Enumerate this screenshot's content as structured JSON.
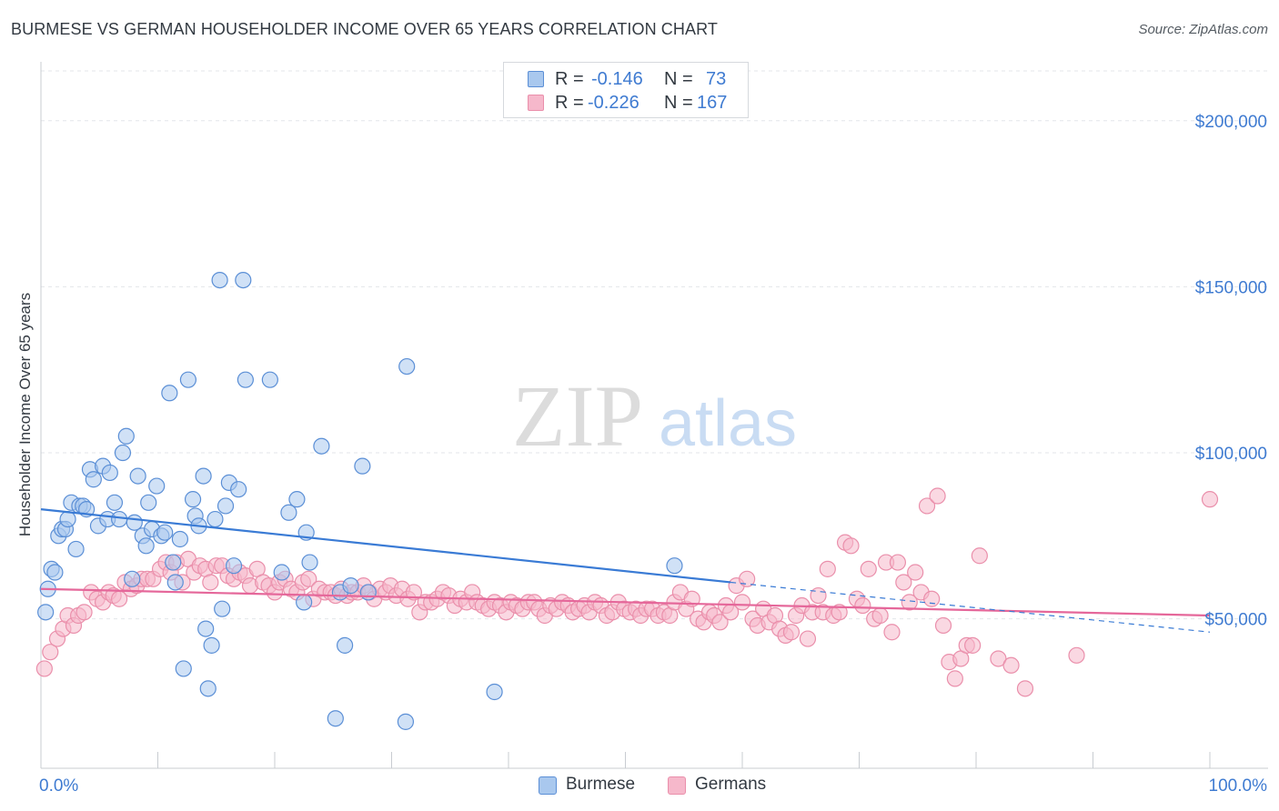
{
  "title": "BURMESE VS GERMAN HOUSEHOLDER INCOME OVER 65 YEARS CORRELATION CHART",
  "source": "Source: ZipAtlas.com",
  "watermark": {
    "zip": "ZIP",
    "atlas": "atlas"
  },
  "legend": {
    "rows": [
      {
        "r_label": "R =",
        "r_value": "-0.146",
        "n_label": "N =",
        "n_value": "73"
      },
      {
        "r_label": "R =",
        "r_value": "-0.226",
        "n_label": "N =",
        "n_value": "167"
      }
    ]
  },
  "colors": {
    "burmese_fill": "#a9c8ee",
    "burmese_stroke": "#5b8fd6",
    "burmese_line": "#3a7bd5",
    "german_fill": "#f6b8cb",
    "german_stroke": "#ea8fab",
    "german_line": "#e5679a",
    "axis_text": "#3f7bd1",
    "grid": "#e3e6ea"
  },
  "chart_data": {
    "type": "scatter",
    "title": "BURMESE VS GERMAN HOUSEHOLDER INCOME OVER 65 YEARS CORRELATION CHART",
    "xlabel": "",
    "ylabel": "Householder Income Over 65 years",
    "xlim": [
      0,
      100
    ],
    "ylim": [
      5000,
      215000
    ],
    "x_tick_labels": [
      "0.0%",
      "100.0%"
    ],
    "y_ticks": [
      50000,
      100000,
      150000,
      200000
    ],
    "y_tick_labels": [
      "$50,000",
      "$100,000",
      "$150,000",
      "$200,000"
    ],
    "grid": true,
    "legend_position": "bottom",
    "series": [
      {
        "name": "Burmese",
        "trend": {
          "x0": 0,
          "y0": 83000,
          "x1": 59,
          "y1": 61000,
          "dashed_to_x": 100,
          "dashed_to_y": 46000
        },
        "points": [
          [
            0.4,
            52000
          ],
          [
            0.6,
            59000
          ],
          [
            0.9,
            65000
          ],
          [
            1.2,
            64000
          ],
          [
            1.5,
            75000
          ],
          [
            1.8,
            77000
          ],
          [
            2.1,
            77000
          ],
          [
            2.3,
            80000
          ],
          [
            2.6,
            85000
          ],
          [
            3.0,
            71000
          ],
          [
            3.3,
            84000
          ],
          [
            3.6,
            84000
          ],
          [
            3.9,
            83000
          ],
          [
            4.2,
            95000
          ],
          [
            4.5,
            92000
          ],
          [
            4.9,
            78000
          ],
          [
            5.3,
            96000
          ],
          [
            5.7,
            80000
          ],
          [
            5.9,
            94000
          ],
          [
            6.3,
            85000
          ],
          [
            6.7,
            80000
          ],
          [
            7.0,
            100000
          ],
          [
            7.3,
            105000
          ],
          [
            7.8,
            62000
          ],
          [
            8.0,
            79000
          ],
          [
            8.3,
            93000
          ],
          [
            8.7,
            75000
          ],
          [
            9.0,
            72000
          ],
          [
            9.2,
            85000
          ],
          [
            9.5,
            77000
          ],
          [
            9.9,
            90000
          ],
          [
            10.3,
            75000
          ],
          [
            10.6,
            76000
          ],
          [
            11.0,
            118000
          ],
          [
            11.3,
            67000
          ],
          [
            11.5,
            61000
          ],
          [
            11.9,
            74000
          ],
          [
            12.2,
            35000
          ],
          [
            12.6,
            122000
          ],
          [
            13.0,
            86000
          ],
          [
            13.2,
            81000
          ],
          [
            13.5,
            78000
          ],
          [
            13.9,
            93000
          ],
          [
            14.1,
            47000
          ],
          [
            14.3,
            29000
          ],
          [
            14.6,
            42000
          ],
          [
            14.9,
            80000
          ],
          [
            15.3,
            152000
          ],
          [
            15.5,
            53000
          ],
          [
            15.8,
            84000
          ],
          [
            16.1,
            91000
          ],
          [
            16.5,
            66000
          ],
          [
            16.9,
            89000
          ],
          [
            17.3,
            152000
          ],
          [
            17.5,
            122000
          ],
          [
            19.6,
            122000
          ],
          [
            20.6,
            64000
          ],
          [
            21.2,
            82000
          ],
          [
            21.9,
            86000
          ],
          [
            22.5,
            55000
          ],
          [
            22.7,
            76000
          ],
          [
            23.0,
            67000
          ],
          [
            24.0,
            102000
          ],
          [
            25.2,
            20000
          ],
          [
            25.6,
            58000
          ],
          [
            26.0,
            42000
          ],
          [
            26.5,
            60000
          ],
          [
            27.5,
            96000
          ],
          [
            28.0,
            58000
          ],
          [
            31.3,
            126000
          ],
          [
            31.2,
            19000
          ],
          [
            38.8,
            28000
          ],
          [
            54.2,
            66000
          ]
        ]
      },
      {
        "name": "Germans",
        "trend": {
          "x0": 0,
          "y0": 59000,
          "x1": 100,
          "y1": 51000
        },
        "points": [
          [
            0.3,
            35000
          ],
          [
            0.8,
            40000
          ],
          [
            1.4,
            44000
          ],
          [
            1.9,
            47000
          ],
          [
            2.3,
            51000
          ],
          [
            2.8,
            48000
          ],
          [
            3.2,
            51000
          ],
          [
            3.7,
            52000
          ],
          [
            4.3,
            58000
          ],
          [
            4.8,
            56000
          ],
          [
            5.3,
            55000
          ],
          [
            5.8,
            58000
          ],
          [
            6.2,
            57000
          ],
          [
            6.7,
            56000
          ],
          [
            7.2,
            61000
          ],
          [
            7.7,
            59000
          ],
          [
            8.2,
            60000
          ],
          [
            8.6,
            62000
          ],
          [
            9.1,
            62000
          ],
          [
            9.6,
            62000
          ],
          [
            10.2,
            65000
          ],
          [
            10.7,
            67000
          ],
          [
            11.1,
            64000
          ],
          [
            11.6,
            67000
          ],
          [
            12.1,
            61000
          ],
          [
            12.6,
            68000
          ],
          [
            13.1,
            64000
          ],
          [
            13.6,
            66000
          ],
          [
            14.1,
            65000
          ],
          [
            14.5,
            61000
          ],
          [
            15.0,
            66000
          ],
          [
            15.5,
            66000
          ],
          [
            16.0,
            63000
          ],
          [
            16.5,
            62000
          ],
          [
            17.0,
            64000
          ],
          [
            17.5,
            63000
          ],
          [
            17.9,
            60000
          ],
          [
            18.5,
            65000
          ],
          [
            19.0,
            61000
          ],
          [
            19.5,
            60000
          ],
          [
            20.0,
            58000
          ],
          [
            20.4,
            61000
          ],
          [
            20.9,
            62000
          ],
          [
            21.4,
            59000
          ],
          [
            21.9,
            58000
          ],
          [
            22.4,
            61000
          ],
          [
            22.9,
            62000
          ],
          [
            23.3,
            56000
          ],
          [
            23.8,
            59000
          ],
          [
            24.3,
            58000
          ],
          [
            24.8,
            58000
          ],
          [
            25.2,
            57000
          ],
          [
            25.7,
            59000
          ],
          [
            26.2,
            57000
          ],
          [
            26.6,
            58000
          ],
          [
            27.1,
            58000
          ],
          [
            27.6,
            60000
          ],
          [
            28.1,
            58000
          ],
          [
            28.5,
            56000
          ],
          [
            29.0,
            59000
          ],
          [
            29.5,
            58000
          ],
          [
            29.9,
            60000
          ],
          [
            30.4,
            57000
          ],
          [
            30.9,
            59000
          ],
          [
            31.4,
            56000
          ],
          [
            31.9,
            58000
          ],
          [
            32.4,
            52000
          ],
          [
            32.9,
            55000
          ],
          [
            33.4,
            55000
          ],
          [
            33.9,
            56000
          ],
          [
            34.4,
            58000
          ],
          [
            34.9,
            57000
          ],
          [
            35.4,
            54000
          ],
          [
            35.9,
            56000
          ],
          [
            36.4,
            55000
          ],
          [
            36.9,
            58000
          ],
          [
            37.3,
            55000
          ],
          [
            37.8,
            54000
          ],
          [
            38.3,
            53000
          ],
          [
            38.8,
            55000
          ],
          [
            39.3,
            54000
          ],
          [
            39.8,
            52000
          ],
          [
            40.2,
            55000
          ],
          [
            40.7,
            54000
          ],
          [
            41.2,
            53000
          ],
          [
            41.7,
            55000
          ],
          [
            42.2,
            55000
          ],
          [
            42.6,
            53000
          ],
          [
            43.1,
            51000
          ],
          [
            43.6,
            54000
          ],
          [
            44.1,
            53000
          ],
          [
            44.6,
            55000
          ],
          [
            45.1,
            54000
          ],
          [
            45.5,
            52000
          ],
          [
            46.0,
            53000
          ],
          [
            46.5,
            54000
          ],
          [
            46.9,
            52000
          ],
          [
            47.4,
            55000
          ],
          [
            47.9,
            54000
          ],
          [
            48.4,
            51000
          ],
          [
            48.9,
            52000
          ],
          [
            49.4,
            55000
          ],
          [
            49.9,
            53000
          ],
          [
            50.4,
            52000
          ],
          [
            50.9,
            53000
          ],
          [
            51.3,
            51000
          ],
          [
            51.8,
            53000
          ],
          [
            52.3,
            53000
          ],
          [
            52.8,
            51000
          ],
          [
            53.3,
            52000
          ],
          [
            53.8,
            51000
          ],
          [
            54.2,
            55000
          ],
          [
            54.7,
            58000
          ],
          [
            55.2,
            53000
          ],
          [
            55.7,
            56000
          ],
          [
            56.2,
            50000
          ],
          [
            56.7,
            49000
          ],
          [
            57.2,
            52000
          ],
          [
            57.6,
            51000
          ],
          [
            58.1,
            49000
          ],
          [
            58.6,
            54000
          ],
          [
            59.0,
            52000
          ],
          [
            59.5,
            60000
          ],
          [
            60.0,
            55000
          ],
          [
            60.4,
            62000
          ],
          [
            60.9,
            50000
          ],
          [
            61.3,
            48000
          ],
          [
            61.8,
            53000
          ],
          [
            62.3,
            49000
          ],
          [
            62.8,
            51000
          ],
          [
            63.2,
            47000
          ],
          [
            63.7,
            45000
          ],
          [
            64.2,
            46000
          ],
          [
            64.6,
            51000
          ],
          [
            65.1,
            54000
          ],
          [
            65.6,
            44000
          ],
          [
            66.0,
            52000
          ],
          [
            66.5,
            57000
          ],
          [
            66.9,
            52000
          ],
          [
            67.3,
            65000
          ],
          [
            67.8,
            51000
          ],
          [
            68.3,
            52000
          ],
          [
            68.8,
            73000
          ],
          [
            69.3,
            72000
          ],
          [
            69.8,
            56000
          ],
          [
            70.3,
            54000
          ],
          [
            70.8,
            65000
          ],
          [
            71.3,
            50000
          ],
          [
            71.8,
            51000
          ],
          [
            72.3,
            67000
          ],
          [
            72.8,
            46000
          ],
          [
            73.3,
            67000
          ],
          [
            73.8,
            61000
          ],
          [
            74.3,
            55000
          ],
          [
            74.8,
            64000
          ],
          [
            75.3,
            58000
          ],
          [
            75.8,
            84000
          ],
          [
            76.2,
            56000
          ],
          [
            76.7,
            87000
          ],
          [
            77.2,
            48000
          ],
          [
            77.7,
            37000
          ],
          [
            78.2,
            32000
          ],
          [
            78.7,
            38000
          ],
          [
            79.2,
            42000
          ],
          [
            79.7,
            42000
          ],
          [
            80.3,
            69000
          ],
          [
            81.9,
            38000
          ],
          [
            83.0,
            36000
          ],
          [
            84.2,
            29000
          ],
          [
            88.6,
            39000
          ],
          [
            100.0,
            86000
          ]
        ]
      }
    ]
  }
}
